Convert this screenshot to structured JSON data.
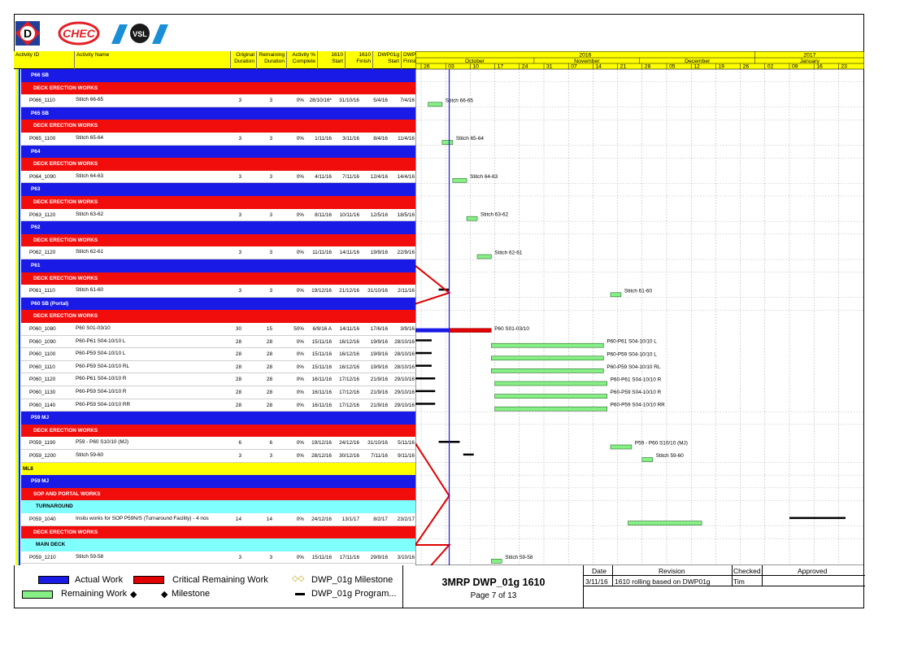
{
  "header": {
    "col_activity_id": "Activity ID",
    "col_activity_name": "Activity Name",
    "col_orig_duration": "Original Duration",
    "col_rem_duration": "Remaining Duration",
    "col_pct_complete": "Activity % Complete",
    "col_1610_start": "1610 Start",
    "col_1610_finish": "1610 Finish",
    "col_dwp_start": "DWP01g Start",
    "col_dwp_finish": "DWP01g Finish"
  },
  "timescale": {
    "years": [
      "2016",
      "2017"
    ],
    "months": [
      "October",
      "November",
      "December",
      "January"
    ],
    "weeks": [
      "26",
      "03",
      "10",
      "17",
      "24",
      "31",
      "07",
      "14",
      "21",
      "28",
      "05",
      "12",
      "19",
      "26",
      "02",
      "09",
      "16",
      "23"
    ]
  },
  "rows": [
    {
      "kind": "grp-blue",
      "title": "P66 SB"
    },
    {
      "kind": "grp-red",
      "title": "DECK ERECTION WORKS"
    },
    {
      "kind": "act",
      "id": "P066_1110",
      "name": "Stitch 66-65",
      "od": "3",
      "rd": "3",
      "pct": "0%",
      "s": "28/10/16*",
      "f": "31/10/16",
      "ds": "5/4/16",
      "df": "7/4/16",
      "label": "Stitch 66-65"
    },
    {
      "kind": "grp-blue",
      "title": "P65 SB"
    },
    {
      "kind": "grp-red",
      "title": "DECK ERECTION WORKS"
    },
    {
      "kind": "act",
      "id": "P065_1100",
      "name": "Stitch 65-64",
      "od": "3",
      "rd": "3",
      "pct": "0%",
      "s": "1/11/16",
      "f": "3/11/16",
      "ds": "8/4/16",
      "df": "11/4/16",
      "label": "Stitch 65-64"
    },
    {
      "kind": "grp-blue",
      "title": "P64"
    },
    {
      "kind": "grp-red",
      "title": "DECK ERECTION WORKS"
    },
    {
      "kind": "act",
      "id": "P064_1090",
      "name": "Stitch 64-63",
      "od": "3",
      "rd": "3",
      "pct": "0%",
      "s": "4/11/16",
      "f": "7/11/16",
      "ds": "12/4/16",
      "df": "14/4/16",
      "label": "Stitch 64-63"
    },
    {
      "kind": "grp-blue",
      "title": "P63"
    },
    {
      "kind": "grp-red",
      "title": "DECK ERECTION WORKS"
    },
    {
      "kind": "act",
      "id": "P063_1120",
      "name": "Stitch 63-62",
      "od": "3",
      "rd": "3",
      "pct": "0%",
      "s": "8/11/16",
      "f": "10/11/16",
      "ds": "12/5/16",
      "df": "18/5/16",
      "label": "Stitch 63-62"
    },
    {
      "kind": "grp-blue",
      "title": "P62"
    },
    {
      "kind": "grp-red",
      "title": "DECK ERECTION WORKS"
    },
    {
      "kind": "act",
      "id": "P062_1120",
      "name": "Stitch 62-61",
      "od": "3",
      "rd": "3",
      "pct": "0%",
      "s": "11/11/16",
      "f": "14/11/16",
      "ds": "19/9/16",
      "df": "22/9/16",
      "label": "Stitch 62-61"
    },
    {
      "kind": "grp-blue",
      "title": "P61"
    },
    {
      "kind": "grp-red",
      "title": "DECK ERECTION WORKS"
    },
    {
      "kind": "act",
      "id": "P061_1110",
      "name": "Stitch 61-60",
      "od": "3",
      "rd": "3",
      "pct": "0%",
      "s": "19/12/16",
      "f": "21/12/16",
      "ds": "31/10/16",
      "df": "2/11/16",
      "label": "Stitch 61-60"
    },
    {
      "kind": "grp-blue",
      "title": "P60 SB (Portal)"
    },
    {
      "kind": "grp-red",
      "title": "DECK ERECTION WORKS"
    },
    {
      "kind": "act",
      "id": "P060_1080",
      "name": "P60 S01-03/10",
      "od": "30",
      "rd": "15",
      "pct": "50%",
      "s": "6/9/16 A",
      "f": "14/11/16",
      "ds": "17/6/16",
      "df": "3/9/16",
      "label": "P60 S01-03/10"
    },
    {
      "kind": "act",
      "id": "P060_1090",
      "name": "P60-P61 S04-10/10 L",
      "od": "28",
      "rd": "28",
      "pct": "0%",
      "s": "15/11/16",
      "f": "16/12/16",
      "ds": "19/9/16",
      "df": "28/10/16",
      "label": "P60-P61 S04-10/10 L"
    },
    {
      "kind": "act",
      "id": "P060_1100",
      "name": "P60-P59 S04-10/10 L",
      "od": "28",
      "rd": "28",
      "pct": "0%",
      "s": "15/11/16",
      "f": "16/12/16",
      "ds": "19/9/16",
      "df": "28/10/16",
      "label": "P60-P59 S04-10/10 L"
    },
    {
      "kind": "act",
      "id": "P060_1110",
      "name": "P60-P59 S04-10/10 RL",
      "od": "28",
      "rd": "28",
      "pct": "0%",
      "s": "15/11/16",
      "f": "16/12/16",
      "ds": "19/9/16",
      "df": "28/10/16",
      "label": "P60-P59 S04-10/10 RL"
    },
    {
      "kind": "act",
      "id": "P060_1120",
      "name": "P60-P61 S04-10/10 R",
      "od": "28",
      "rd": "28",
      "pct": "0%",
      "s": "16/11/16",
      "f": "17/12/16",
      "ds": "21/9/16",
      "df": "29/10/16",
      "label": "P60-P61 S04-10/10 R"
    },
    {
      "kind": "act",
      "id": "P060_1130",
      "name": "P60-P59 S04-10/10 R",
      "od": "28",
      "rd": "28",
      "pct": "0%",
      "s": "16/11/16",
      "f": "17/12/16",
      "ds": "21/9/16",
      "df": "29/10/16",
      "label": "P60-P59 S04-10/10 R"
    },
    {
      "kind": "act",
      "id": "P060_1140",
      "name": "P60-P59 S04-10/10 RR",
      "od": "28",
      "rd": "28",
      "pct": "0%",
      "s": "16/11/16",
      "f": "17/12/16",
      "ds": "21/9/16",
      "df": "29/10/16",
      "label": "P60-P59 S04-10/10 RR"
    },
    {
      "kind": "grp-blue",
      "title": "P59 MJ"
    },
    {
      "kind": "grp-red",
      "title": "DECK ERECTION WORKS"
    },
    {
      "kind": "act",
      "id": "P059_1190",
      "name": "P59 - P60 S10/10 (MJ)",
      "od": "6",
      "rd": "6",
      "pct": "0%",
      "s": "19/12/16",
      "f": "24/12/16",
      "ds": "31/10/16",
      "df": "5/11/16",
      "label": "P59 - P60 S10/10 (MJ)"
    },
    {
      "kind": "act",
      "id": "P059_1200",
      "name": "Stitch 59-60",
      "od": "3",
      "rd": "3",
      "pct": "0%",
      "s": "28/12/16",
      "f": "30/12/16",
      "ds": "7/11/16",
      "df": "9/11/16",
      "label": "Stitch 59-60"
    },
    {
      "kind": "grp-yellow",
      "title": "ML8"
    },
    {
      "kind": "grp-blue",
      "title": "P59 MJ"
    },
    {
      "kind": "grp-red",
      "title": "SOP AND PORTAL WORKS"
    },
    {
      "kind": "grp-cyan",
      "title": "TURNAROUND"
    },
    {
      "kind": "act",
      "id": "P059_1040",
      "name": "Insitu works for SOP P59N/S (Turnaround Facility) - 4 nos",
      "od": "14",
      "rd": "14",
      "pct": "0%",
      "s": "24/12/16",
      "f": "13/1/17",
      "ds": "8/2/17",
      "df": "23/2/17",
      "label": ""
    },
    {
      "kind": "grp-red",
      "title": "DECK ERECTION WORKS"
    },
    {
      "kind": "grp-cyan",
      "title": "MAIN DECK"
    },
    {
      "kind": "act",
      "id": "P059_1210",
      "name": "Stitch 59-58",
      "od": "3",
      "rd": "3",
      "pct": "0%",
      "s": "15/11/16",
      "f": "17/11/16",
      "ds": "29/9/16",
      "df": "3/10/16",
      "label": "Stitch 59-58"
    }
  ],
  "legend": {
    "actual_work": "Actual Work",
    "critical_remaining": "Critical Remaining Work",
    "dwp_milestone": "DWP_01g Milestone",
    "remaining_work": "Remaining Work",
    "milestone": "Milestone",
    "dwp_program": "DWP_01g Program..."
  },
  "title_block": {
    "title": "3MRP DWP_01g 1610",
    "page": "Page 7 of 13"
  },
  "revision": {
    "h_date": "Date",
    "h_revision": "Revision",
    "h_checked": "Checked",
    "h_approved": "Approved",
    "date": "3/11/16",
    "text": "1610 rolling based on DWP01g",
    "checked": "Tim",
    "approved": ""
  },
  "colors": {
    "actual": "#1a1ae6",
    "critical": "#e00000",
    "remaining": "#86f086",
    "baseline": "#000000",
    "header_yellow": "#ffff00"
  }
}
